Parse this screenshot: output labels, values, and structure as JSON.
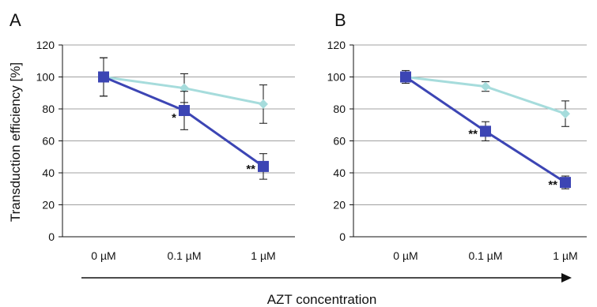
{
  "figure": {
    "ylabel": "Transduction efficiency [%]",
    "xlabel": "AZT concentration"
  },
  "colors": {
    "dark_series": "#3c45b4",
    "light_series": "#a6dcdc",
    "grid": "#a0a0a0",
    "axis": "#111111"
  },
  "chart_data": [
    {
      "panel_label": "A",
      "type": "line",
      "categories": [
        "0 µM",
        "0.1 µM",
        "1 µM"
      ],
      "ylim": [
        0,
        120
      ],
      "yticks": [
        0,
        20,
        40,
        60,
        80,
        100,
        120
      ],
      "grid": true,
      "series": [
        {
          "marker": "diamond",
          "color": "#a6dcdc",
          "values": [
            100,
            93,
            83
          ],
          "errors": [
            12,
            9,
            12
          ],
          "significance": [
            "",
            "",
            ""
          ]
        },
        {
          "marker": "square",
          "color": "#3c45b4",
          "values": [
            100,
            79,
            44
          ],
          "errors": [
            12,
            12,
            8
          ],
          "significance": [
            "",
            "*",
            "**"
          ]
        }
      ]
    },
    {
      "panel_label": "B",
      "type": "line",
      "categories": [
        "0 µM",
        "0.1 µM",
        "1 µM"
      ],
      "ylim": [
        0,
        120
      ],
      "yticks": [
        0,
        20,
        40,
        60,
        80,
        100,
        120
      ],
      "grid": true,
      "series": [
        {
          "marker": "diamond",
          "color": "#a6dcdc",
          "values": [
            100,
            94,
            77
          ],
          "errors": [
            3,
            3,
            8
          ],
          "significance": [
            "",
            "",
            ""
          ]
        },
        {
          "marker": "square",
          "color": "#3c45b4",
          "values": [
            100,
            66,
            34
          ],
          "errors": [
            4,
            6,
            4
          ],
          "significance": [
            "",
            "**",
            "**"
          ]
        }
      ]
    }
  ]
}
